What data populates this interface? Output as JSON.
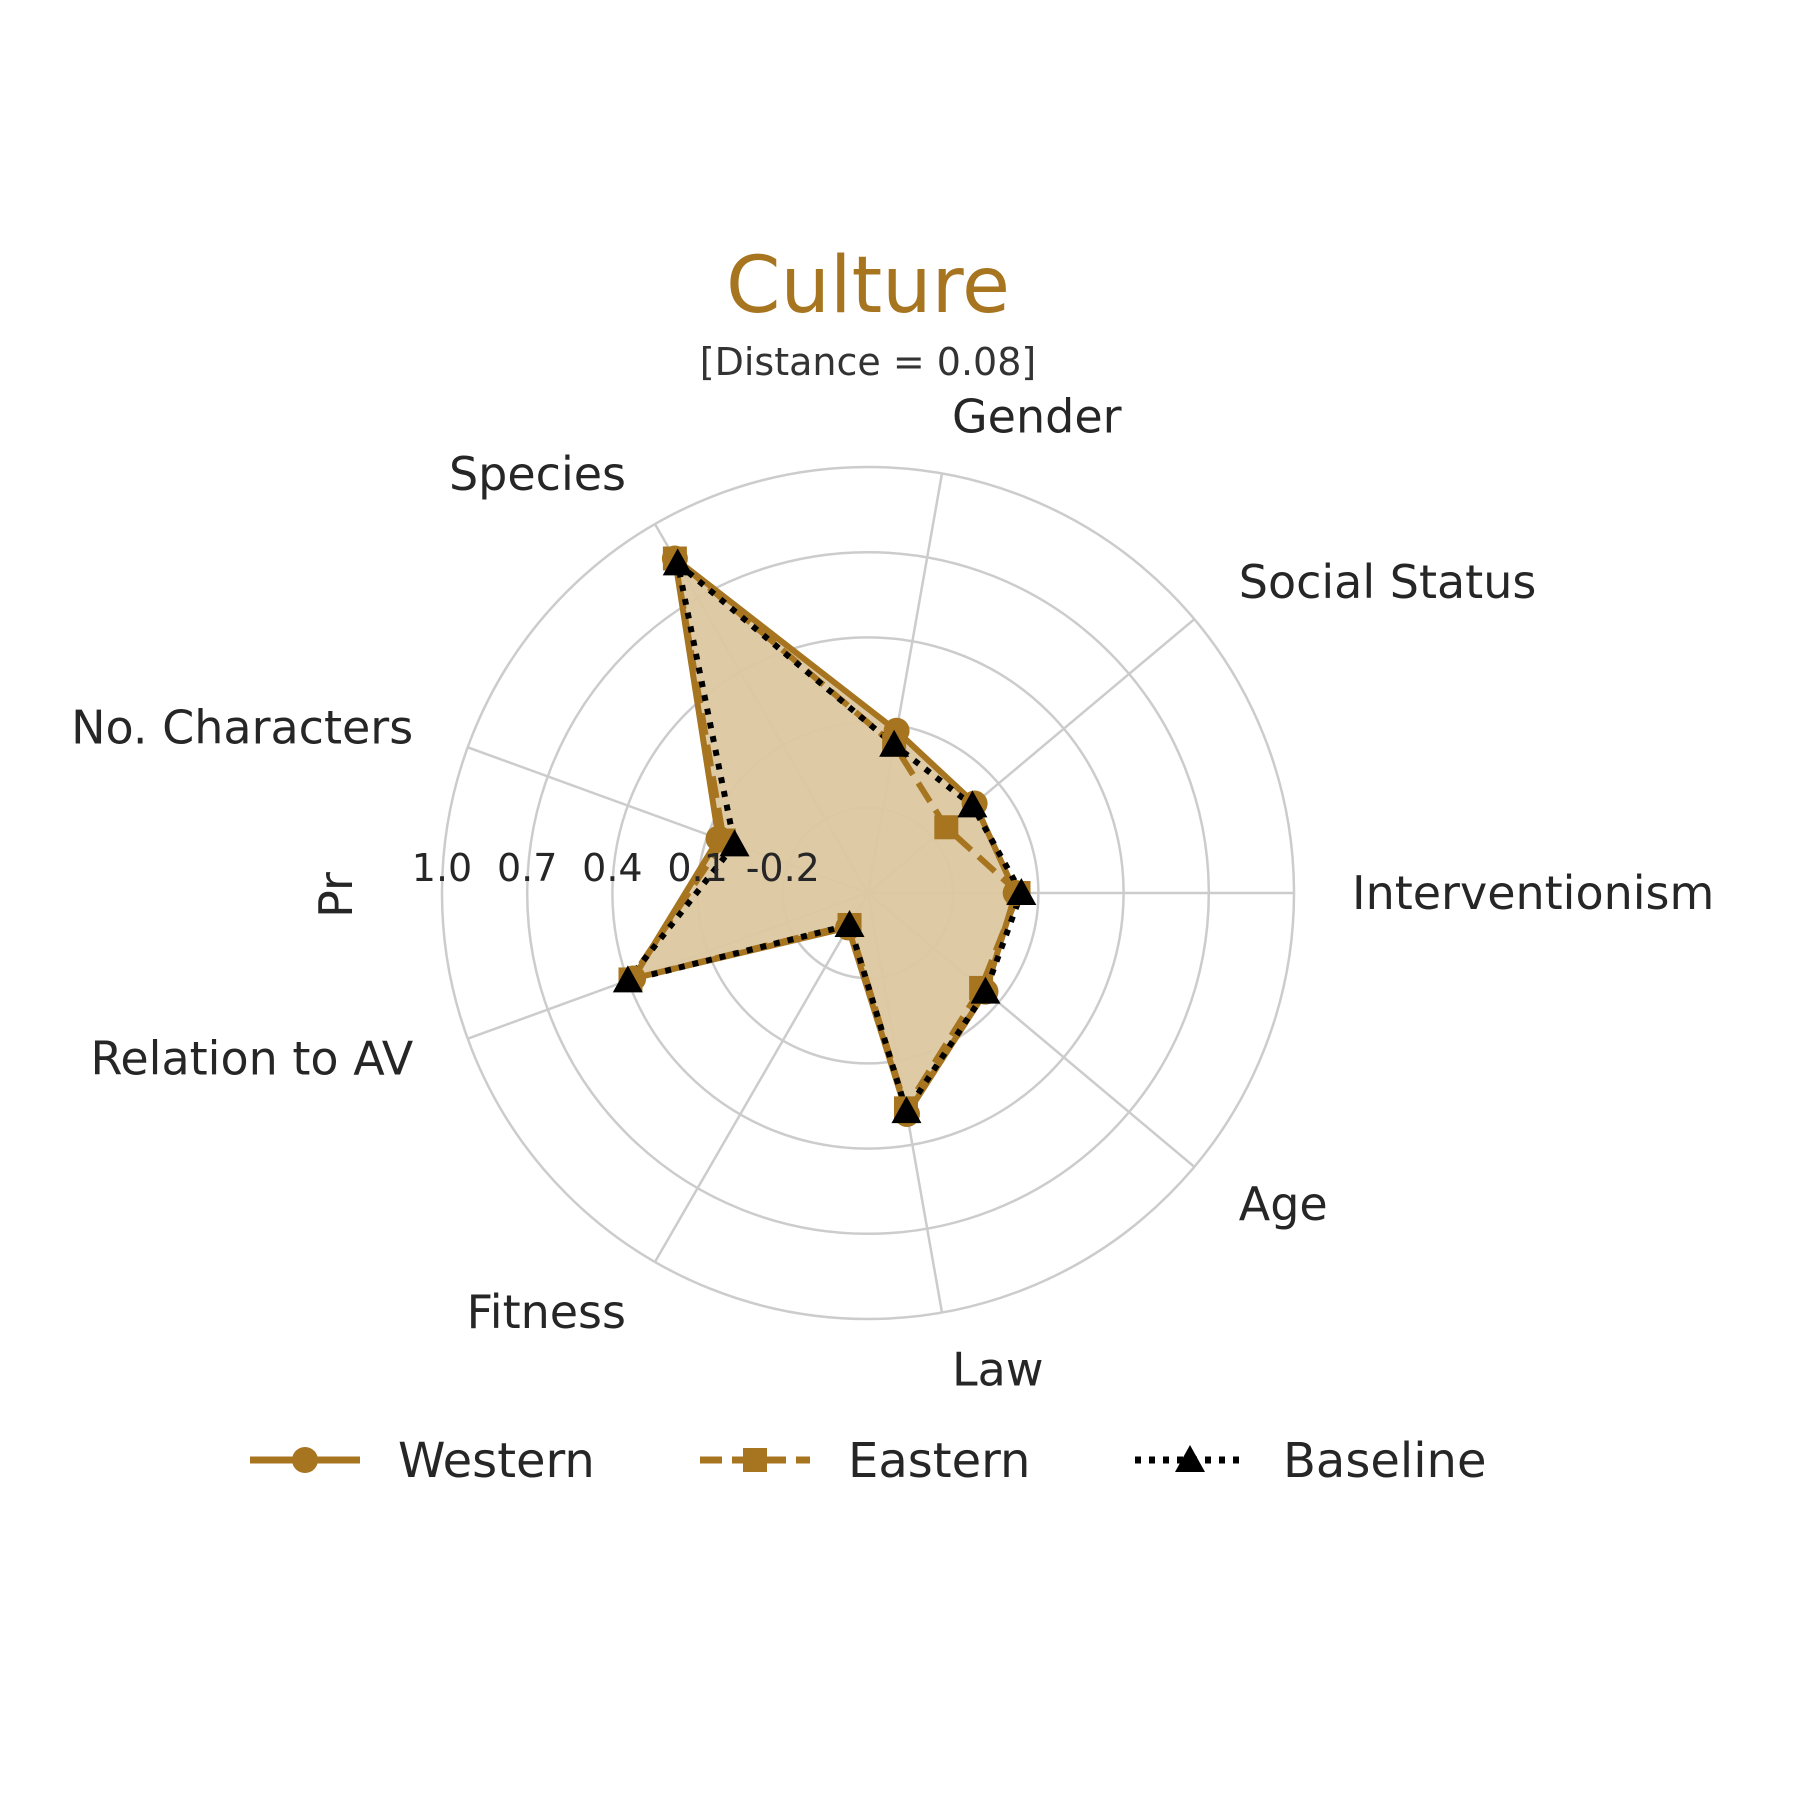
{
  "chart_data": {
    "type": "radar",
    "title": "Culture",
    "subtitle": "[Distance = 0.08]",
    "ylabel": "Pr",
    "categories": [
      "Interventionism",
      "Social Status",
      "Gender",
      "Species",
      "No. Characters",
      "Relation to AV",
      "Fitness",
      "Law",
      "Age"
    ],
    "radial_ticks": [
      "-0.2",
      "0.1",
      "0.4",
      "0.7",
      "1.0"
    ],
    "rlim": [
      -0.5,
      1.0
    ],
    "grid": true,
    "legend_position": "bottom",
    "series": [
      {
        "name": "Western",
        "color": "#a77520",
        "line_style": "solid",
        "marker": "circle",
        "filled": true,
        "values": [
          0.02,
          -0.01,
          0.08,
          0.86,
          0.06,
          0.38,
          -0.36,
          0.29,
          0.04
        ]
      },
      {
        "name": "Eastern",
        "color": "#a77520",
        "line_style": "dashed",
        "marker": "square",
        "filled": false,
        "values": [
          0.03,
          -0.14,
          0.03,
          0.86,
          0.04,
          0.39,
          -0.37,
          0.27,
          0.02
        ]
      },
      {
        "name": "Baseline",
        "color": "#000000",
        "line_style": "dotted",
        "marker": "triangle",
        "filled": false,
        "values": [
          0.04,
          -0.02,
          0.03,
          0.84,
          0.0,
          0.4,
          -0.37,
          0.28,
          0.04
        ]
      }
    ],
    "fill_color": "#dcc7a0"
  }
}
